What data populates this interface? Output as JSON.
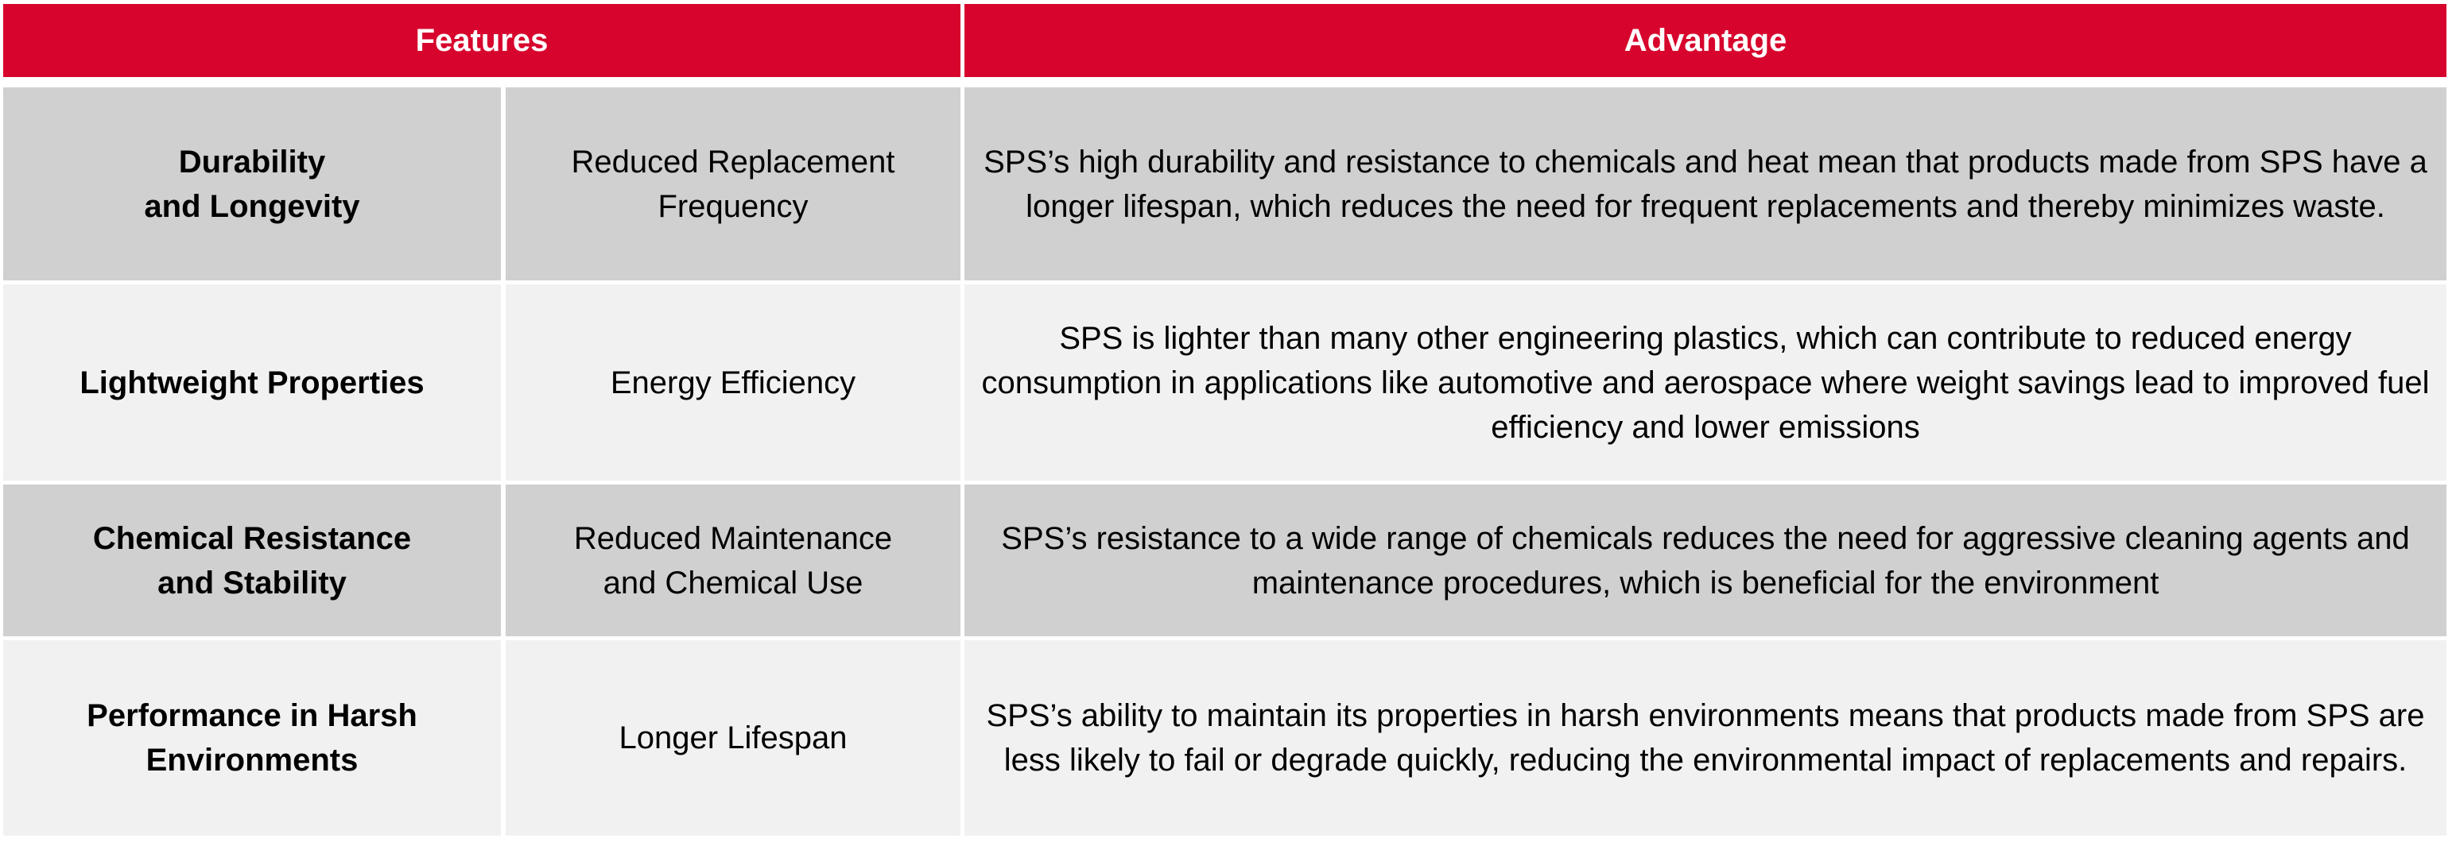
{
  "table": {
    "header": {
      "features": "Features",
      "advantage": "Advantage"
    },
    "colors": {
      "header_bg": "#d7052d",
      "header_text": "#ffffff",
      "row_dark": "#d0d0d0",
      "row_light": "#f1f1f1"
    },
    "rows": [
      {
        "feature": "Durability\nand Longevity",
        "benefit": "Reduced Replacement\nFrequency",
        "advantage": "SPS’s high durability and resistance to chemicals and heat mean that products made from SPS have a longer lifespan, which reduces the need for frequent replacements and thereby minimizes waste."
      },
      {
        "feature": "Lightweight Properties",
        "benefit": "Energy Efficiency",
        "advantage": "SPS is lighter than many other engineering plastics, which can contribute to reduced energy consumption in applications like automotive and aerospace where weight savings lead to improved fuel efficiency and lower emissions"
      },
      {
        "feature": "Chemical Resistance\nand Stability",
        "benefit": "Reduced Maintenance\nand Chemical Use",
        "advantage": "SPS’s resistance to a wide range of chemicals reduces the need for aggressive cleaning agents and maintenance procedures, which is beneficial for the environment"
      },
      {
        "feature": "Performance in Harsh\nEnvironments",
        "benefit": "Longer Lifespan",
        "advantage": "SPS’s ability to maintain its properties in harsh environments means that products made from SPS are less likely to fail or degrade quickly, reducing the environmental impact of replacements and repairs."
      }
    ]
  }
}
